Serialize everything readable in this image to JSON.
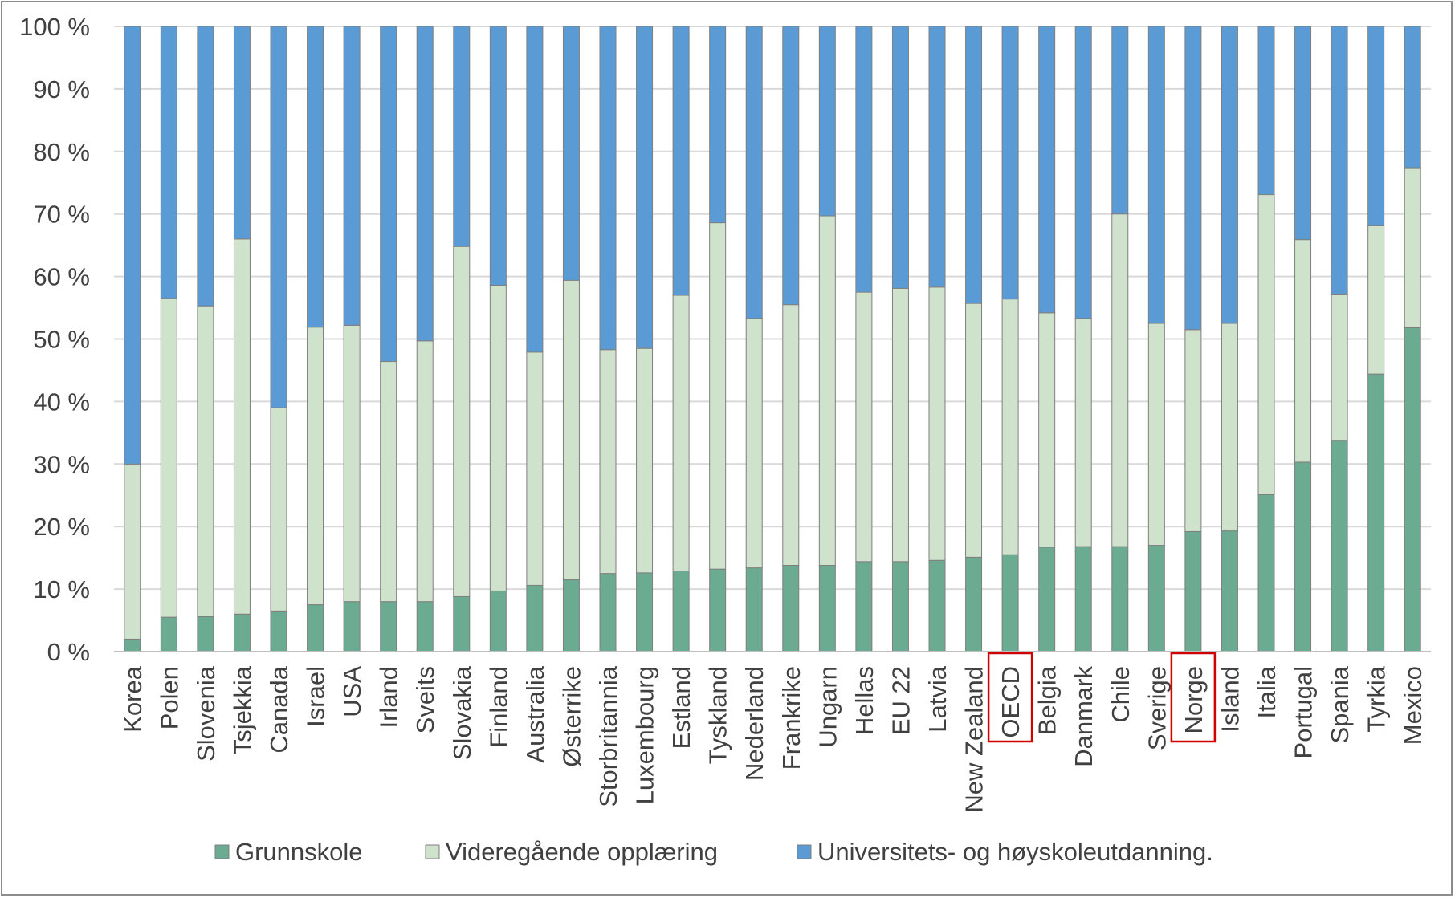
{
  "chart_data": {
    "type": "bar",
    "stacked": true,
    "normalized": true,
    "categories": [
      "Korea",
      "Polen",
      "Slovenia",
      "Tsjekkia",
      "Canada",
      "Israel",
      "USA",
      "Irland",
      "Sveits",
      "Slovakia",
      "Finland",
      "Australia",
      "Østerrike",
      "Storbritannia",
      "Luxembourg",
      "Estland",
      "Tyskland",
      "Nederland",
      "Frankrike",
      "Ungarn",
      "Hellas",
      "EU 22",
      "Latvia",
      "New Zealand",
      "OECD",
      "Belgia",
      "Danmark",
      "Chile",
      "Sverige",
      "Norge",
      "Island",
      "Italia",
      "Portugal",
      "Spania",
      "Tyrkia",
      "Mexico"
    ],
    "series": [
      {
        "name": "Grunnskole",
        "color": "#6aab91",
        "values": [
          2,
          5.5,
          5.6,
          6,
          6.5,
          7.5,
          8,
          8,
          8,
          8.8,
          9.7,
          10.6,
          11.5,
          12.5,
          12.6,
          12.9,
          13.2,
          13.4,
          13.8,
          13.8,
          14.4,
          14.4,
          14.6,
          15.1,
          15.5,
          16.7,
          16.8,
          16.8,
          17,
          19.2,
          19.3,
          25.1,
          30.3,
          33.8,
          44.4,
          51.8
        ]
      },
      {
        "name": "Videregående opplæring",
        "color": "#cfe2cb",
        "values": [
          28,
          51,
          49.7,
          60,
          32.5,
          44.4,
          44.2,
          38.4,
          41.7,
          56,
          48.9,
          37.3,
          47.9,
          35.8,
          35.9,
          44.1,
          55.4,
          39.9,
          41.7,
          55.9,
          43.1,
          43.7,
          43.7,
          40.6,
          40.9,
          37.5,
          36.5,
          53.2,
          35.5,
          32.3,
          33.2,
          48,
          35.6,
          23.4,
          23.8,
          25.6
        ]
      },
      {
        "name": "Universitets- og høyskoleutdanning.",
        "color": "#5b9bd5",
        "values": [
          70,
          43.5,
          44.7,
          34,
          61,
          48.1,
          47.8,
          53.6,
          50.3,
          35.2,
          41.4,
          52.1,
          40.6,
          51.7,
          51.5,
          43,
          31.4,
          46.7,
          44.5,
          30.3,
          42.5,
          41.9,
          41.7,
          44.3,
          43.6,
          45.8,
          46.7,
          30,
          47.5,
          48.5,
          47.5,
          26.9,
          34.1,
          42.8,
          31.8,
          22.6
        ]
      }
    ],
    "yticks": [
      "0 %",
      "10 %",
      "20 %",
      "30 %",
      "40 %",
      "50 %",
      "60 %",
      "70 %",
      "80 %",
      "90 %",
      "100 %"
    ],
    "ylim": [
      0,
      100
    ],
    "highlighted": [
      "OECD",
      "Norge"
    ],
    "highlight_color": "#d00000",
    "legend": "bottom",
    "grid": true
  }
}
